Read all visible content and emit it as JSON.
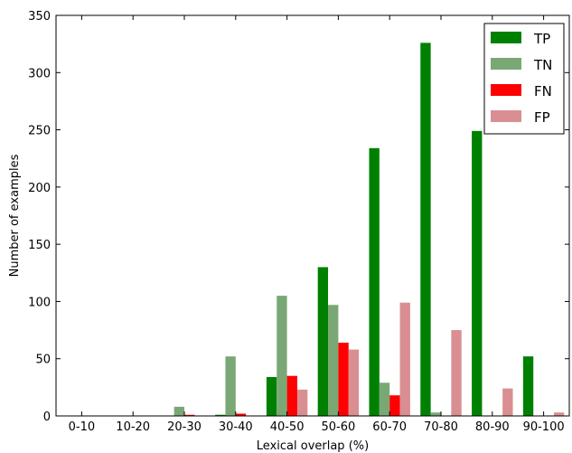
{
  "chart_data": {
    "type": "bar",
    "categories": [
      "0-10",
      "10-20",
      "20-30",
      "30-40",
      "40-50",
      "50-60",
      "60-70",
      "70-80",
      "80-90",
      "90-100"
    ],
    "series": [
      {
        "name": "TP",
        "color": "#008000",
        "values": [
          0,
          0,
          0,
          1,
          34,
          130,
          234,
          326,
          249,
          52
        ]
      },
      {
        "name": "TN",
        "color": "#7aa874",
        "values": [
          0,
          0,
          8,
          52,
          105,
          97,
          29,
          3,
          0,
          0
        ]
      },
      {
        "name": "FN",
        "color": "#ff0000",
        "values": [
          0,
          0,
          1,
          2,
          35,
          64,
          18,
          0,
          0,
          0
        ]
      },
      {
        "name": "FP",
        "color": "#d98f92",
        "values": [
          0,
          0,
          0,
          0,
          23,
          58,
          99,
          75,
          24,
          3
        ]
      }
    ],
    "xlabel": "Lexical overlap (%)",
    "ylabel": "Number of examples",
    "ylim": [
      0,
      350
    ],
    "yticks": [
      0,
      50,
      100,
      150,
      200,
      250,
      300,
      350
    ],
    "grid": false,
    "legend_position": "top-right"
  }
}
